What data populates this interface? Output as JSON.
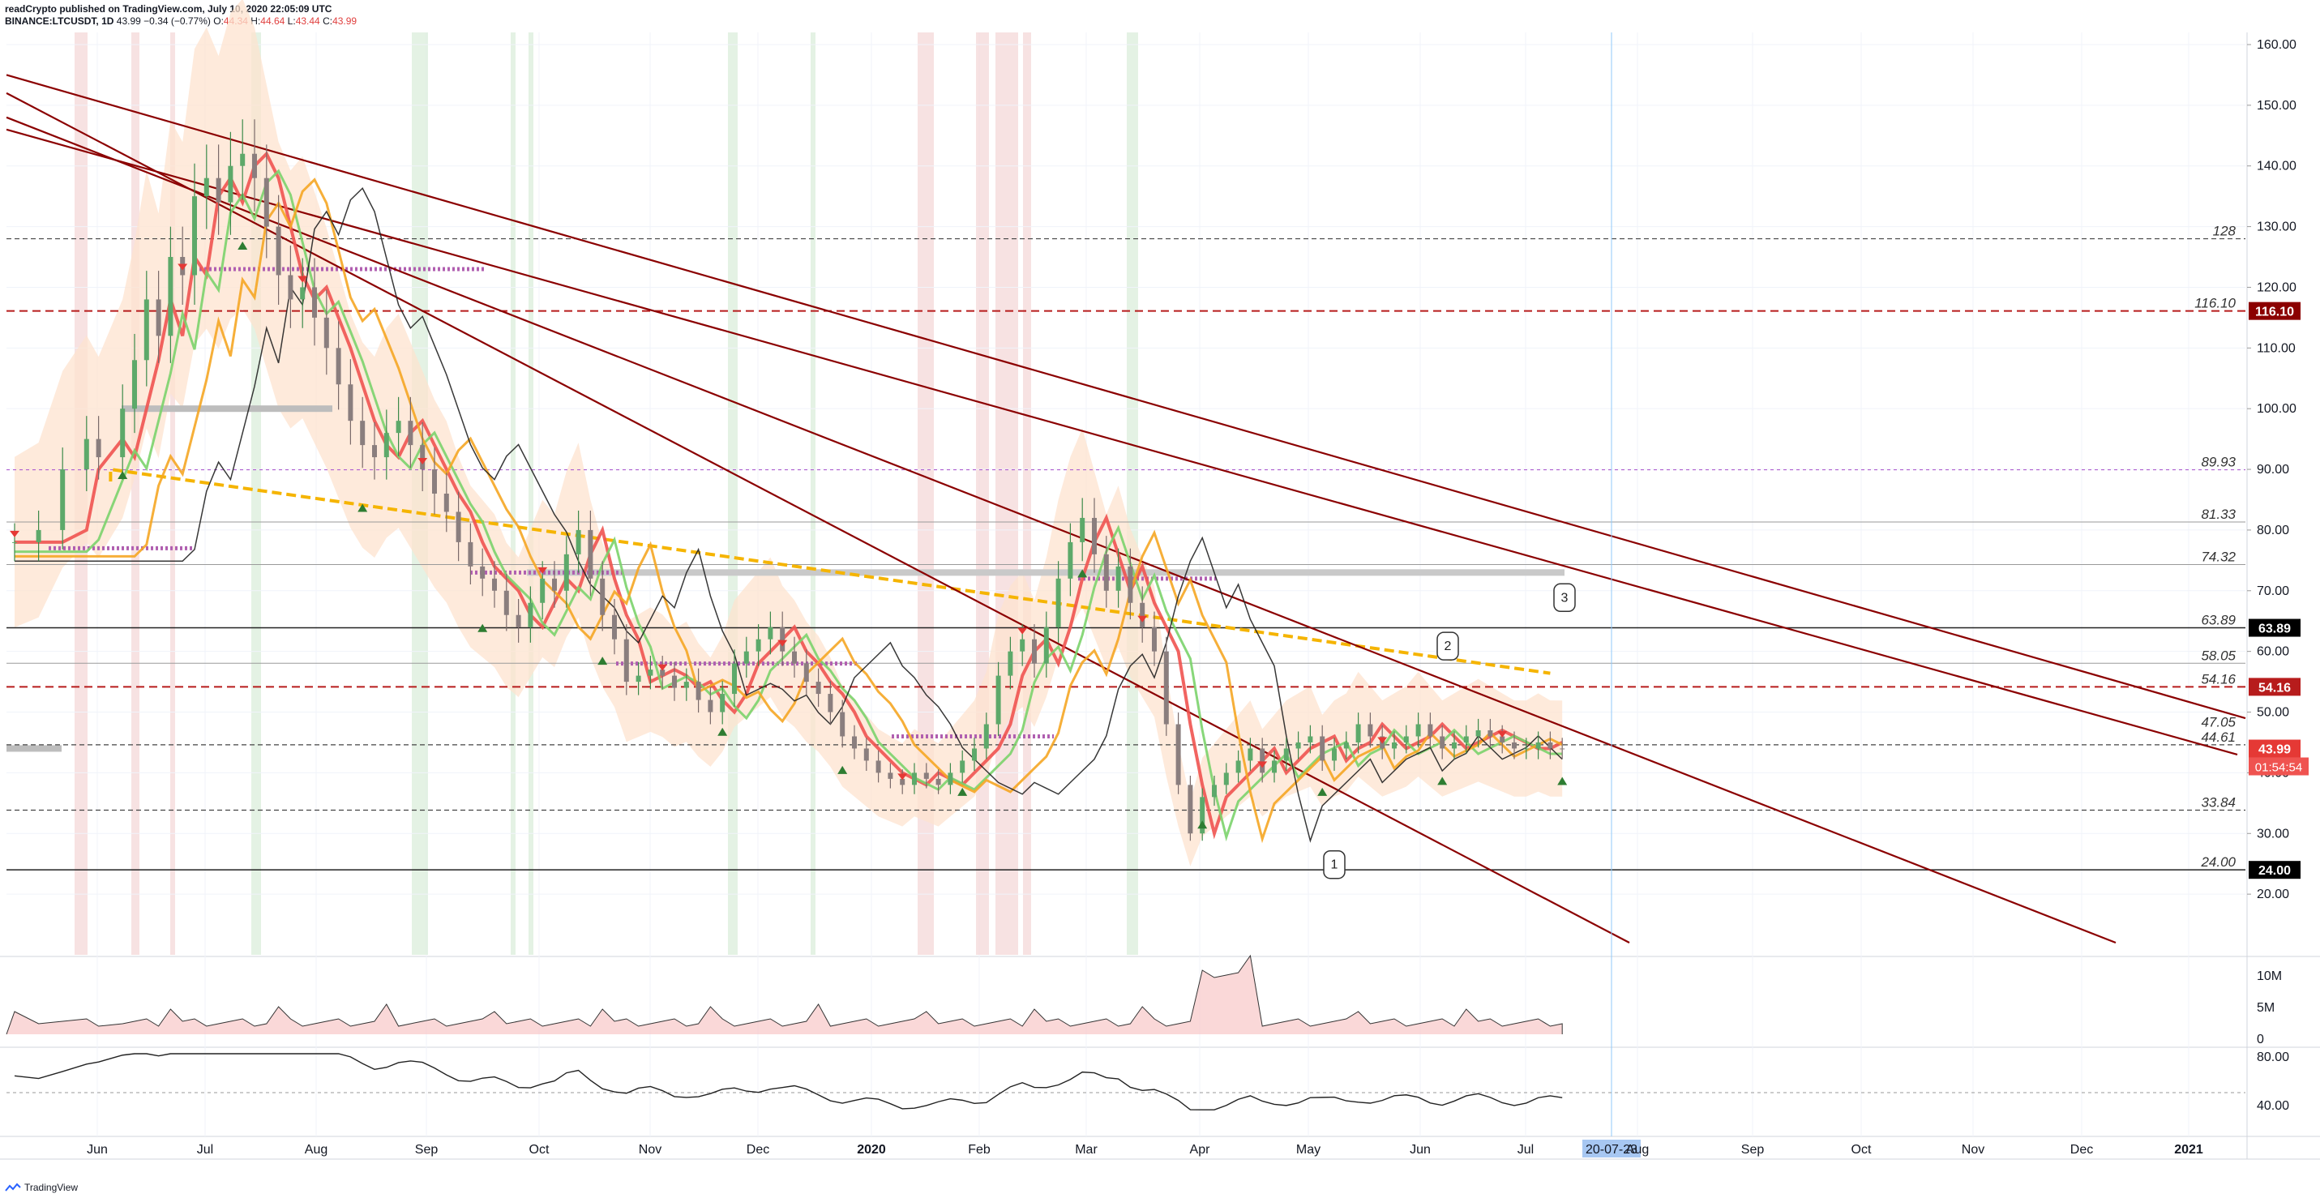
{
  "header": {
    "publisher_line": "readCrypto published on TradingView.com, July 10, 2020 22:05:09 UTC",
    "symbol_line": "BINANCE:LTCUSDT, 1D",
    "last": "43.99",
    "change": "−0.34 (−0.77%)",
    "open_label": "O:",
    "open": "44.34",
    "high_label": "H:",
    "high": "44.64",
    "low_label": "L:",
    "low": "43.44",
    "close_label": "C:",
    "close": "43.99"
  },
  "footer": {
    "brand": "TradingView"
  },
  "colors": {
    "up": "#2e7d32",
    "down": "#e53935",
    "resistance_line": "#8b0000",
    "dashed_red": "#b71c1c",
    "cloud": "#fde3cf",
    "ma_fast": "#ef5350",
    "ma_mid": "#7bd36b",
    "ma_slow": "#f5a623",
    "purple": "#b05fb0",
    "yellow": "#f5b400"
  },
  "chart_data": [
    {
      "type": "line",
      "panel": "price",
      "ylim": [
        10,
        162
      ],
      "price_axis_ticks": [
        "160.00",
        "150.00",
        "140.00",
        "130.00",
        "120.00",
        "110.00",
        "100.00",
        "90.00",
        "80.00",
        "70.00",
        "60.00",
        "50.00",
        "40.00",
        "30.00",
        "20.00"
      ],
      "time_axis_labels": [
        "Jun",
        "Jul",
        "Aug",
        "Sep",
        "Oct",
        "Nov",
        "Dec",
        "2020",
        "Feb",
        "Mar",
        "Apr",
        "May",
        "Jun",
        "Jul",
        "20-07-23",
        "Aug",
        "Sep",
        "Oct",
        "Nov",
        "Dec",
        "2021"
      ],
      "cursor_date_label": "20-07-23",
      "series": [
        {
          "values": [
            [
              0,
              78
            ],
            [
              2,
              80
            ],
            [
              4,
              90
            ],
            [
              6,
              95
            ],
            [
              7,
              92
            ],
            [
              9,
              100
            ],
            [
              10,
              108
            ],
            [
              11,
              118
            ],
            [
              12,
              112
            ],
            [
              13,
              125
            ],
            [
              14,
              122
            ],
            [
              15,
              135
            ],
            [
              16,
              138
            ],
            [
              17,
              134
            ],
            [
              18,
              140
            ],
            [
              19,
              142
            ],
            [
              20,
              138
            ],
            [
              21,
              130
            ],
            [
              22,
              122
            ],
            [
              23,
              118
            ],
            [
              24,
              120
            ],
            [
              25,
              115
            ],
            [
              26,
              110
            ],
            [
              27,
              104
            ],
            [
              28,
              98
            ],
            [
              29,
              94
            ],
            [
              30,
              92
            ],
            [
              31,
              96
            ],
            [
              32,
              98
            ],
            [
              33,
              94
            ],
            [
              34,
              90
            ],
            [
              35,
              86
            ],
            [
              36,
              83
            ],
            [
              37,
              78
            ],
            [
              38,
              74
            ],
            [
              39,
              72
            ],
            [
              40,
              70
            ],
            [
              41,
              66
            ],
            [
              42,
              64
            ],
            [
              43,
              68
            ],
            [
              44,
              72
            ],
            [
              45,
              70
            ],
            [
              46,
              76
            ],
            [
              47,
              80
            ],
            [
              48,
              72
            ],
            [
              49,
              66
            ],
            [
              50,
              62
            ],
            [
              51,
              55
            ],
            [
              52,
              56
            ],
            [
              53,
              57
            ],
            [
              54,
              56
            ],
            [
              55,
              54
            ],
            [
              56,
              55
            ],
            [
              57,
              52
            ],
            [
              58,
              50
            ],
            [
              59,
              53
            ],
            [
              60,
              58
            ],
            [
              61,
              60
            ],
            [
              62,
              62
            ],
            [
              63,
              64
            ],
            [
              64,
              60
            ],
            [
              65,
              58
            ],
            [
              66,
              55
            ],
            [
              67,
              53
            ],
            [
              68,
              50
            ],
            [
              69,
              46
            ],
            [
              70,
              44
            ],
            [
              71,
              42
            ],
            [
              72,
              40
            ],
            [
              73,
              39
            ],
            [
              74,
              38
            ],
            [
              75,
              40
            ],
            [
              76,
              39
            ],
            [
              77,
              38
            ],
            [
              78,
              40
            ],
            [
              79,
              42
            ],
            [
              80,
              44
            ],
            [
              81,
              48
            ],
            [
              82,
              56
            ],
            [
              83,
              60
            ],
            [
              84,
              62
            ],
            [
              85,
              58
            ],
            [
              86,
              64
            ],
            [
              87,
              72
            ],
            [
              88,
              78
            ],
            [
              89,
              82
            ],
            [
              90,
              76
            ],
            [
              91,
              70
            ],
            [
              92,
              74
            ],
            [
              93,
              68
            ],
            [
              94,
              64
            ],
            [
              95,
              60
            ],
            [
              96,
              48
            ],
            [
              97,
              38
            ],
            [
              98,
              30
            ],
            [
              99,
              36
            ],
            [
              100,
              38
            ],
            [
              101,
              40
            ],
            [
              102,
              42
            ],
            [
              103,
              44
            ],
            [
              104,
              40
            ],
            [
              105,
              42
            ],
            [
              106,
              44
            ],
            [
              107,
              45
            ],
            [
              108,
              46
            ],
            [
              109,
              42
            ],
            [
              110,
              44
            ],
            [
              111,
              45
            ],
            [
              112,
              48
            ],
            [
              113,
              46
            ],
            [
              114,
              44
            ],
            [
              115,
              45
            ],
            [
              116,
              46
            ],
            [
              117,
              48
            ],
            [
              118,
              46
            ],
            [
              119,
              44
            ],
            [
              120,
              45
            ],
            [
              121,
              46
            ],
            [
              122,
              47
            ],
            [
              123,
              46
            ],
            [
              124,
              45
            ],
            [
              125,
              44
            ],
            [
              126,
              44
            ],
            [
              127,
              45
            ],
            [
              128,
              44
            ],
            [
              129,
              43.99
            ]
          ]
        }
      ],
      "horizontal_levels": [
        {
          "value": 128,
          "label": "128",
          "style": "dashed"
        },
        {
          "value": 116.1,
          "label": "116.10",
          "style": "dashed-red"
        },
        {
          "value": 89.93,
          "label": "89.93",
          "style": "dashed-purple"
        },
        {
          "value": 81.33,
          "label": "81.33",
          "style": "solid-thin"
        },
        {
          "value": 74.32,
          "label": "74.32",
          "style": "solid-thin"
        },
        {
          "value": 63.89,
          "label": "63.89",
          "style": "solid"
        },
        {
          "value": 58.05,
          "label": "58.05",
          "style": "solid-thin"
        },
        {
          "value": 54.16,
          "label": "54.16",
          "style": "dashed-red"
        },
        {
          "value": 47.05,
          "label": "47.05",
          "style": "none"
        },
        {
          "value": 44.61,
          "label": "44.61",
          "style": "dashed"
        },
        {
          "value": 33.84,
          "label": "33.84",
          "style": "dashed"
        },
        {
          "value": 24.0,
          "label": "24.00",
          "style": "solid"
        }
      ],
      "axis_badges": {
        "l116": "116.10",
        "l63": "63.89",
        "l54": "54.16",
        "last": "43.99",
        "countdown": "01:54:54",
        "l24": "24.00"
      },
      "callouts": [
        "1",
        "2",
        "3"
      ]
    },
    {
      "type": "area",
      "panel": "volume",
      "axis_ticks": [
        "10M",
        "5M",
        "0"
      ]
    },
    {
      "type": "line",
      "panel": "oscillator",
      "axis_ticks": [
        "80.00",
        "40.00"
      ]
    }
  ]
}
